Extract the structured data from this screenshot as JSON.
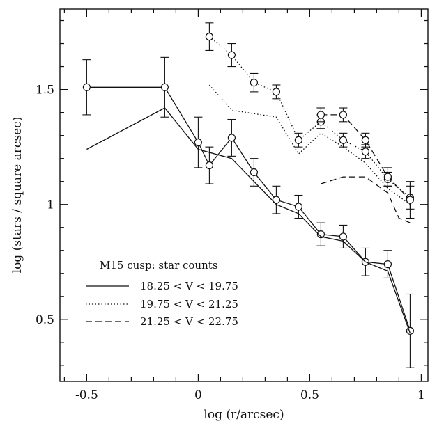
{
  "chart_data": {
    "type": "line",
    "title": "",
    "xlabel": "log (r/arcsec)",
    "ylabel": "log (stars / square arcsec)",
    "xlim": [
      -0.62,
      1.03
    ],
    "ylim": [
      0.23,
      1.85
    ],
    "xticks": [
      -0.5,
      0,
      0.5,
      1
    ],
    "xtick_labels": [
      "-0.5",
      "0",
      "0.5",
      "1"
    ],
    "yticks": [
      0.5,
      1,
      1.5
    ],
    "ytick_labels": [
      "0.5",
      "1",
      "1.5"
    ],
    "grid": false,
    "legend_title": "M15 cusp: star counts",
    "legend_position": "lower-left",
    "legend": [
      {
        "label": "18.25 < V < 19.75",
        "style": "solid"
      },
      {
        "label": "19.75 < V < 21.25",
        "style": "dotted"
      },
      {
        "label": "21.25 < V < 22.75",
        "style": "dashed"
      }
    ],
    "series": [
      {
        "style": "solid",
        "x": [
          -0.5,
          -0.15,
          0.0,
          0.05,
          0.15,
          0.25,
          0.35,
          0.45,
          0.55,
          0.65,
          0.75,
          0.85,
          0.95
        ],
        "y": [
          1.51,
          1.51,
          1.27,
          1.17,
          1.29,
          1.14,
          1.02,
          0.99,
          0.87,
          0.86,
          0.75,
          0.74,
          0.45
        ],
        "err": [
          0.12,
          0.13,
          0.11,
          0.08,
          0.08,
          0.06,
          0.06,
          0.05,
          0.05,
          0.05,
          0.06,
          0.06,
          0.16
        ],
        "markers": true
      },
      {
        "style": "solid",
        "x": [
          -0.5,
          -0.15,
          0.0,
          0.15,
          0.25,
          0.35,
          0.45,
          0.55,
          0.65,
          0.75,
          0.85,
          0.95
        ],
        "y": [
          1.24,
          1.42,
          1.24,
          1.2,
          1.1,
          1.0,
          0.96,
          0.86,
          0.84,
          0.75,
          0.71,
          0.44
        ],
        "err": [],
        "markers": false
      },
      {
        "style": "dotted",
        "x": [
          0.05,
          0.15,
          0.25,
          0.35,
          0.45,
          0.55,
          0.65,
          0.75,
          0.85,
          0.95
        ],
        "y": [
          1.73,
          1.65,
          1.53,
          1.49,
          1.28,
          1.36,
          1.28,
          1.23,
          1.11,
          1.03
        ],
        "err": [
          0.06,
          0.05,
          0.04,
          0.03,
          0.03,
          0.03,
          0.03,
          0.03,
          0.03,
          0.05
        ],
        "markers": true
      },
      {
        "style": "dotted",
        "x": [
          0.05,
          0.15,
          0.35,
          0.45,
          0.55,
          0.65,
          0.75,
          0.85,
          0.95
        ],
        "y": [
          1.52,
          1.41,
          1.38,
          1.22,
          1.31,
          1.25,
          1.18,
          1.07,
          1.0
        ],
        "err": [],
        "markers": false
      },
      {
        "style": "dashed",
        "x": [
          0.55,
          0.65,
          0.75,
          0.85,
          0.95
        ],
        "y": [
          1.39,
          1.39,
          1.28,
          1.12,
          1.02
        ],
        "err": [
          0.03,
          0.03,
          0.03,
          0.04,
          0.08
        ],
        "markers": true
      },
      {
        "style": "dashed",
        "x": [
          0.55,
          0.65,
          0.75,
          0.85,
          0.9,
          0.95
        ],
        "y": [
          1.09,
          1.12,
          1.12,
          1.05,
          0.94,
          0.92
        ],
        "err": [],
        "markers": false
      }
    ]
  }
}
